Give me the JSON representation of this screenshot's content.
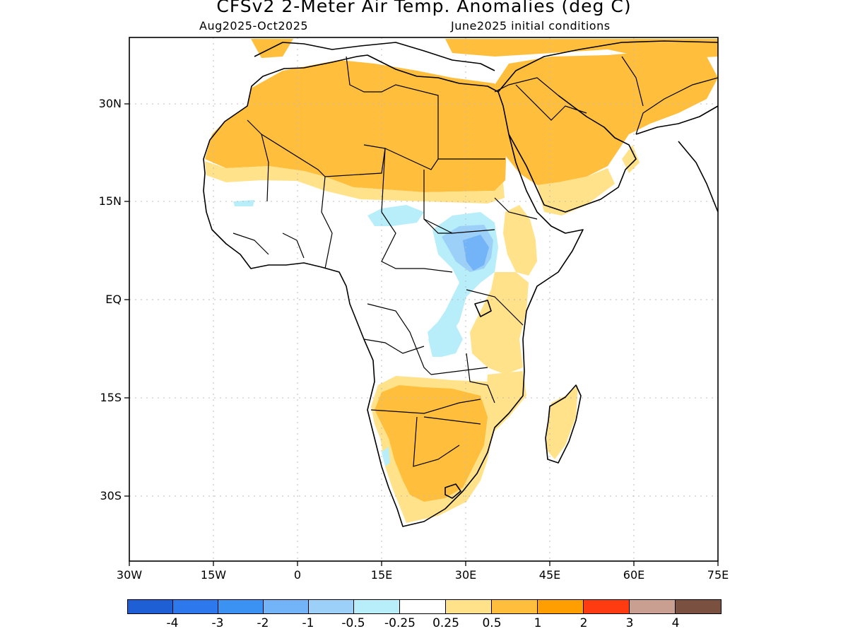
{
  "title": "CFSv2 2-Meter Air Temp. Anomalies (deg C)",
  "period": "Aug2025-Oct2025",
  "init": "June2025 initial conditions",
  "lat_labels": [
    "30N",
    "15N",
    "EQ",
    "15S",
    "30S"
  ],
  "lon_labels": [
    "30W",
    "15W",
    "0",
    "15E",
    "30E",
    "45E",
    "60E",
    "75E"
  ],
  "colorbar": {
    "colors": [
      "#1f5fd6",
      "#2c78ec",
      "#3b92f2",
      "#72b4f7",
      "#9dd0f9",
      "#b7eef9",
      "#ffffff",
      "#ffe28a",
      "#ffbf3c",
      "#ff9e00",
      "#ff3b12",
      "#c99f92",
      "#7a5140"
    ],
    "labels": [
      "-4",
      "-3",
      "-2",
      "-1",
      "-0.5",
      "-0.25",
      "0.25",
      "0.5",
      "1",
      "2",
      "3",
      "4"
    ]
  },
  "anomaly_colors": {
    "warm_light": "#ffe28a",
    "warm": "#ffbf3c",
    "cool_light": "#b7eef9",
    "cool": "#9dd0f9",
    "cool_mid": "#72b4f7"
  }
}
